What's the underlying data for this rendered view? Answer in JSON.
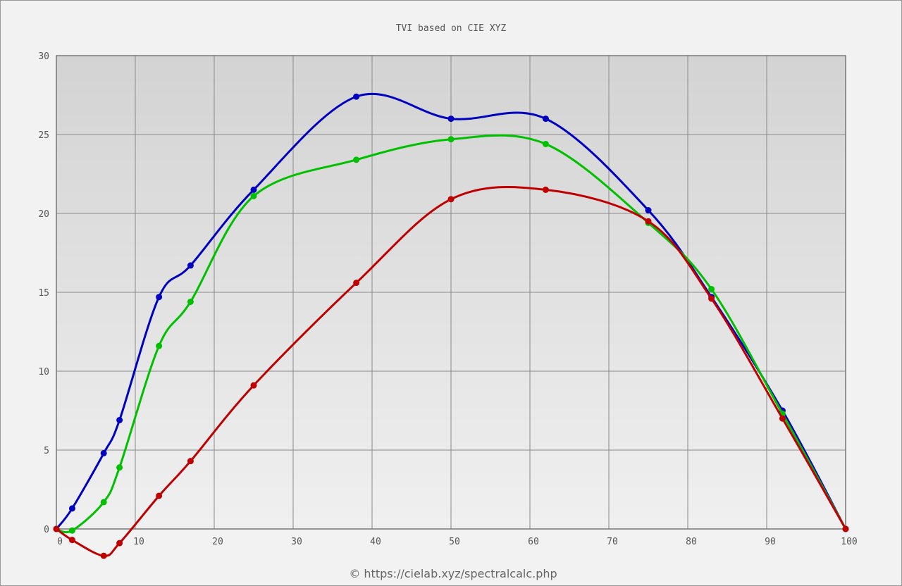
{
  "chart_data": {
    "type": "line",
    "title": "TVI based on CIE XYZ",
    "footer": "© https://cielab.xyz/spectralcalc.php",
    "x": [
      0,
      2,
      6,
      8,
      13,
      17,
      25,
      38,
      50,
      62,
      75,
      83,
      92,
      100
    ],
    "series": [
      {
        "color": "#0000c0",
        "values": [
          0,
          1.3,
          4.8,
          6.9,
          14.7,
          16.7,
          21.5,
          27.4,
          26.0,
          26.0,
          20.2,
          14.7,
          7.5,
          0
        ]
      },
      {
        "color": "#00c000",
        "values": [
          0,
          -0.1,
          1.7,
          3.9,
          11.6,
          14.4,
          21.1,
          23.4,
          24.7,
          24.4,
          19.4,
          15.2,
          7.3,
          0
        ]
      },
      {
        "color": "#c00000",
        "values": [
          0,
          -0.7,
          -1.7,
          -0.9,
          2.1,
          4.3,
          9.1,
          15.6,
          20.9,
          21.5,
          19.5,
          14.6,
          7.0,
          0
        ]
      }
    ],
    "xlim": [
      0,
      100
    ],
    "ylim": [
      0,
      30
    ],
    "xticks": [
      0,
      10,
      20,
      30,
      40,
      50,
      60,
      70,
      80,
      90,
      100
    ],
    "yticks": [
      0,
      5,
      10,
      15,
      20,
      25,
      30
    ],
    "grid": true
  }
}
